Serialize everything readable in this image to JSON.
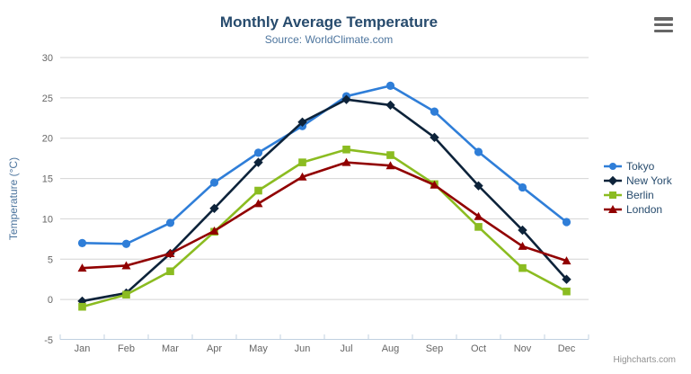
{
  "credits": "Highcharts.com",
  "menu": {
    "icon": "hamburger-menu-icon"
  },
  "chart_data": {
    "type": "line",
    "title": "Monthly Average Temperature",
    "subtitle": "Source: WorldClimate.com",
    "xlabel": "",
    "ylabel": "Temperature (°C)",
    "categories": [
      "Jan",
      "Feb",
      "Mar",
      "Apr",
      "May",
      "Jun",
      "Jul",
      "Aug",
      "Sep",
      "Oct",
      "Nov",
      "Dec"
    ],
    "ylim": [
      -5,
      30
    ],
    "yticks": [
      -5,
      0,
      5,
      10,
      15,
      20,
      25,
      30
    ],
    "grid": true,
    "legend_position": "right",
    "series": [
      {
        "name": "Tokyo",
        "color": "#2f7ed8",
        "marker": "circle",
        "values": [
          7.0,
          6.9,
          9.5,
          14.5,
          18.2,
          21.5,
          25.2,
          26.5,
          23.3,
          18.3,
          13.9,
          9.6
        ]
      },
      {
        "name": "New York",
        "color": "#0d233a",
        "marker": "diamond",
        "values": [
          -0.2,
          0.8,
          5.7,
          11.3,
          17.0,
          22.0,
          24.8,
          24.1,
          20.1,
          14.1,
          8.6,
          2.5
        ]
      },
      {
        "name": "Berlin",
        "color": "#8bbc21",
        "marker": "square",
        "values": [
          -0.9,
          0.6,
          3.5,
          8.4,
          13.5,
          17.0,
          18.6,
          17.9,
          14.3,
          9.0,
          3.9,
          1.0
        ]
      },
      {
        "name": "London",
        "color": "#910000",
        "marker": "triangle",
        "values": [
          3.9,
          4.2,
          5.7,
          8.5,
          11.9,
          15.2,
          17.0,
          16.6,
          14.2,
          10.3,
          6.6,
          4.8
        ]
      }
    ],
    "theme": {
      "title_color": "#274b6d",
      "subtitle_color": "#4d759e",
      "axis_label_color": "#666666",
      "axis_title_color": "#4d759e",
      "grid_color": "#d4d4d4",
      "axis_line_color": "#c0d0e0",
      "legend_text_color": "#274b6d",
      "credits_color": "#909090"
    }
  }
}
